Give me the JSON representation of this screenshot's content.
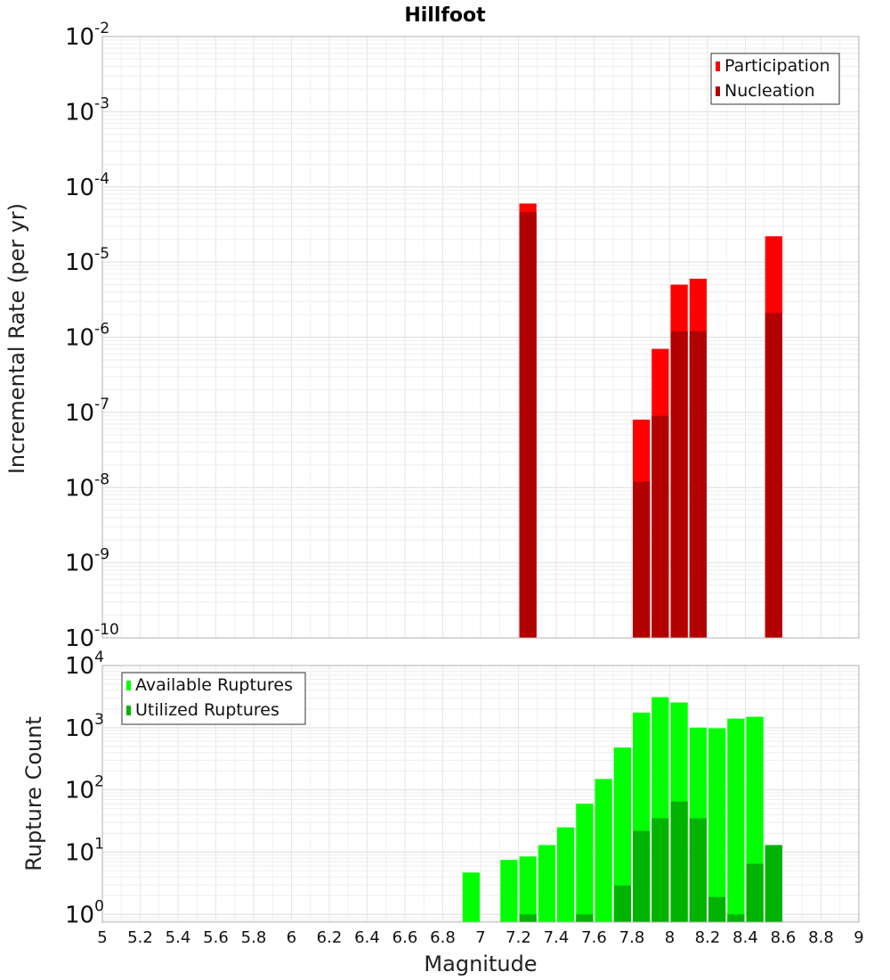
{
  "chart_data": [
    {
      "id": "rates",
      "type": "bar",
      "title": "Hillfoot",
      "ylabel": "Incremental Rate (per yr)",
      "yscale": "log",
      "ylim": [
        1e-10,
        0.01
      ],
      "ytick_exponents": [
        "-10",
        "-9",
        "-8",
        "-7",
        "-6",
        "-5",
        "-4",
        "-3",
        "-2"
      ],
      "ytick_base": "10",
      "grid": true,
      "legend_position": "top-right",
      "bin_width": 0.1,
      "series": [
        {
          "name": "Participation",
          "color": "#ff0000",
          "x": [
            7.25,
            7.85,
            7.95,
            8.05,
            8.15,
            8.55
          ],
          "values": [
            6e-05,
            8e-08,
            7e-07,
            5e-06,
            6e-06,
            2.2e-05
          ]
        },
        {
          "name": "Nucleation",
          "color": "#b30000",
          "x": [
            7.25,
            7.85,
            7.95,
            8.05,
            8.15,
            8.55
          ],
          "values": [
            4.6e-05,
            1.2e-08,
            9e-08,
            1.2e-06,
            1.2e-06,
            2.1e-06
          ]
        }
      ]
    },
    {
      "id": "counts",
      "type": "bar",
      "xlabel": "Magnitude",
      "ylabel": "Rupture Count",
      "yscale": "log",
      "ylim": [
        0.75,
        10000
      ],
      "ytick_exponents": [
        "0",
        "1",
        "2",
        "3",
        "4"
      ],
      "ytick_base": "10",
      "xlim": [
        5,
        9
      ],
      "xticks": [
        "5",
        "5.2",
        "5.4",
        "5.6",
        "5.8",
        "6",
        "6.2",
        "6.4",
        "6.6",
        "6.8",
        "7",
        "7.2",
        "7.4",
        "7.6",
        "7.8",
        "8",
        "8.2",
        "8.4",
        "8.6",
        "8.8",
        "9"
      ],
      "grid": true,
      "legend_position": "top-left",
      "bin_width": 0.1,
      "series": [
        {
          "name": "Available Ruptures",
          "color": "#00ff00",
          "x": [
            6.95,
            7.15,
            7.25,
            7.35,
            7.45,
            7.55,
            7.65,
            7.75,
            7.85,
            7.95,
            8.05,
            8.15,
            8.25,
            8.35,
            8.45,
            8.55
          ],
          "values": [
            4.7,
            7.5,
            8.5,
            13,
            25,
            60,
            150,
            480,
            1750,
            3100,
            2550,
            1000,
            980,
            1400,
            1500,
            13
          ]
        },
        {
          "name": "Utilized Ruptures",
          "color": "#00b300",
          "x": [
            7.25,
            7.55,
            7.75,
            7.85,
            7.95,
            8.05,
            8.15,
            8.25,
            8.35,
            8.45,
            8.55
          ],
          "values": [
            1,
            1,
            2.9,
            22,
            35,
            65,
            35,
            1.9,
            1,
            6.5,
            13
          ]
        }
      ]
    }
  ]
}
